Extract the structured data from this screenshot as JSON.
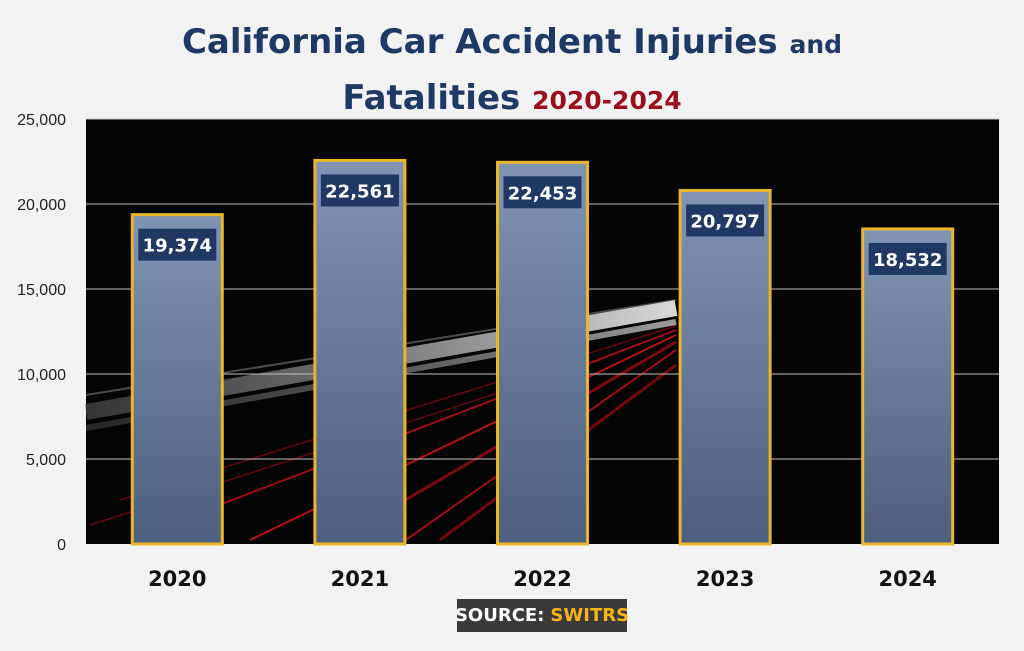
{
  "title": {
    "main": "California Car Accident Injuries",
    "and_word": "and",
    "line2": "Fatalities",
    "years": "2020-2024"
  },
  "source": {
    "label": "SOURCE:",
    "value": "SWITRS"
  },
  "colors": {
    "title": "#1f3864",
    "years": "#9b0e1e",
    "bar_border": "#e8b62a",
    "label_bg": "#1f3864",
    "source_accent": "#f5b418"
  },
  "chart_data": {
    "type": "bar",
    "title": "California Car Accident Injuries and Fatalities 2020-2024",
    "categories": [
      "2020",
      "2021",
      "2022",
      "2023",
      "2024"
    ],
    "values": [
      19374,
      22561,
      22453,
      20797,
      18532
    ],
    "value_labels": [
      "19,374",
      "22,561",
      "22,453",
      "20,797",
      "18,532"
    ],
    "ylim": [
      0,
      25000
    ],
    "yticks": [
      0,
      5000,
      10000,
      15000,
      20000,
      25000
    ],
    "ytick_labels": [
      "0",
      "5,000",
      "10,000",
      "15,000",
      "20,000",
      "25,000"
    ],
    "xlabel": "",
    "ylabel": "",
    "grid": true
  }
}
